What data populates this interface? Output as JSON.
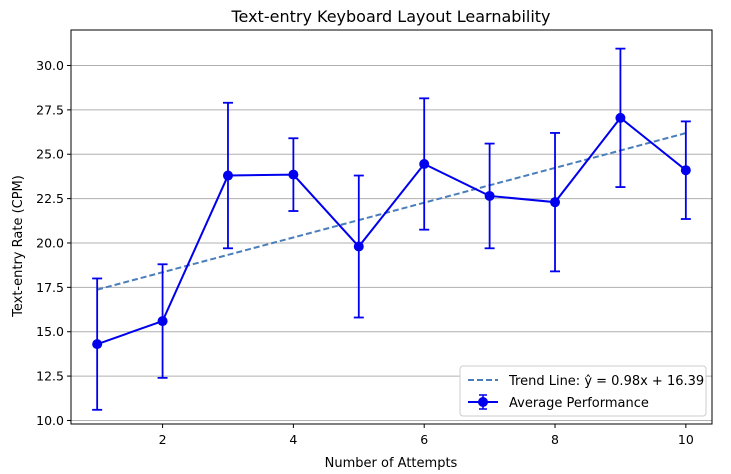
{
  "chart_data": {
    "type": "line",
    "title": "Text-entry Keyboard Layout Learnability",
    "xlabel": "Number of Attempts",
    "ylabel": "Text-entry Rate (CPM)",
    "xlim": [
      0.6,
      10.4
    ],
    "ylim": [
      9.8,
      32.0
    ],
    "x_ticks": [
      2,
      4,
      6,
      8,
      10
    ],
    "x_tick_labels": [
      "2",
      "4",
      "6",
      "8",
      "10"
    ],
    "y_ticks": [
      10.0,
      12.5,
      15.0,
      17.5,
      20.0,
      22.5,
      25.0,
      27.5,
      30.0
    ],
    "y_tick_labels": [
      "10.0",
      "12.5",
      "15.0",
      "17.5",
      "20.0",
      "22.5",
      "25.0",
      "27.5",
      "30.0"
    ],
    "grid": "horizontal",
    "legend_position": "lower right",
    "series": [
      {
        "name": "Average Performance",
        "color": "#0000ee",
        "style": "solid-with-markers-and-errorbars",
        "x": [
          1,
          2,
          3,
          4,
          5,
          6,
          7,
          8,
          9,
          10
        ],
        "y": [
          14.3,
          15.6,
          23.8,
          23.85,
          19.8,
          24.45,
          22.65,
          22.3,
          27.05,
          24.1
        ],
        "error": [
          3.7,
          3.2,
          4.1,
          2.05,
          4.0,
          3.7,
          2.95,
          3.9,
          3.9,
          2.75
        ]
      },
      {
        "name": "Trend Line: ŷ = 0.98x + 16.39",
        "color": "#4a7ebb",
        "style": "dashed",
        "x": [
          1,
          10
        ],
        "y": [
          17.37,
          26.19
        ]
      }
    ]
  }
}
